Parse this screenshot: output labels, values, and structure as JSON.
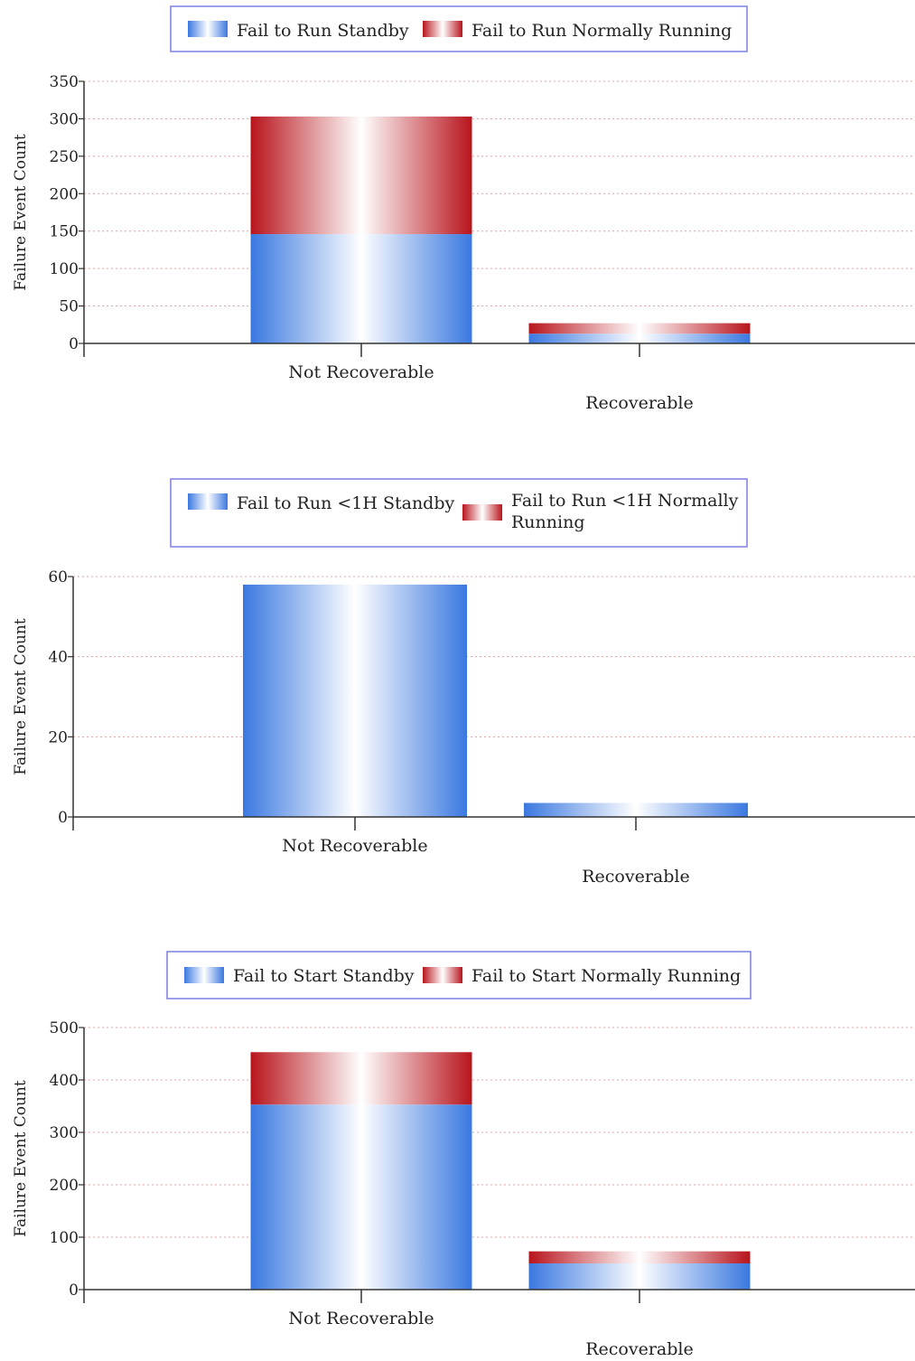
{
  "colors": {
    "standby": "#3a78e0",
    "running": "#b8141c",
    "legend_border": "#7b7fe0",
    "grid": "#e3a0a0"
  },
  "chart_data": [
    {
      "type": "bar",
      "stacked": true,
      "categories": [
        "Not Recoverable",
        "Recoverable"
      ],
      "series": [
        {
          "name": "Fail to Run Standby",
          "values": [
            146,
            13
          ]
        },
        {
          "name": "Fail to Run Normally Running",
          "values": [
            157,
            14
          ]
        }
      ],
      "ylabel": "Failure Event Count",
      "ylim": [
        0,
        350
      ],
      "yticks": [
        0,
        50,
        100,
        150,
        200,
        250,
        300,
        350
      ],
      "grid": true,
      "legend": "top"
    },
    {
      "type": "bar",
      "stacked": true,
      "categories": [
        "Not Recoverable",
        "Recoverable"
      ],
      "series": [
        {
          "name": "Fail to Run <1H Standby",
          "values": [
            58,
            3.5
          ]
        },
        {
          "name": "Fail to Run <1H Normally Running",
          "values": [
            0,
            0
          ]
        }
      ],
      "ylabel": "Failure Event Count",
      "ylim": [
        0,
        60
      ],
      "yticks": [
        0,
        20,
        40,
        60
      ],
      "grid": true,
      "legend": "top"
    },
    {
      "type": "bar",
      "stacked": true,
      "categories": [
        "Not Recoverable",
        "Recoverable"
      ],
      "series": [
        {
          "name": "Fail to Start Standby",
          "values": [
            353,
            50
          ]
        },
        {
          "name": "Fail to Start Normally Running",
          "values": [
            100,
            23
          ]
        }
      ],
      "ylabel": "Failure Event Count",
      "ylim": [
        0,
        500
      ],
      "yticks": [
        0,
        100,
        200,
        300,
        400,
        500
      ],
      "grid": true,
      "legend": "top"
    }
  ]
}
